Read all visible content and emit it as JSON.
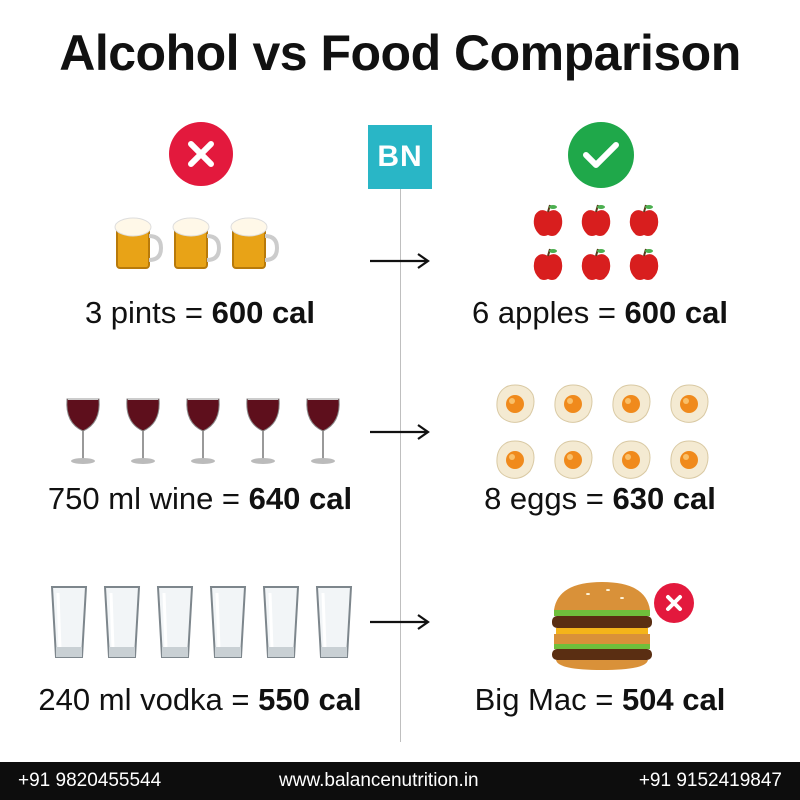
{
  "title": "Alcohol vs Food Comparison",
  "logo": {
    "text": "BN",
    "color": "#29b6c6"
  },
  "colors": {
    "bad": "#e3193d",
    "good": "#1fa84a"
  },
  "rows": [
    {
      "left": {
        "prefix": "3 pints = ",
        "value": "600 cal",
        "icon": "beer-mug-icon",
        "count": 3
      },
      "right": {
        "prefix": "6 apples = ",
        "value": "600 cal",
        "icon": "apple-icon",
        "count": 6
      }
    },
    {
      "left": {
        "prefix": "750 ml wine = ",
        "value": "640 cal",
        "icon": "wine-glass-icon",
        "count": 5
      },
      "right": {
        "prefix": "8 eggs = ",
        "value": "630 cal",
        "icon": "fried-egg-icon",
        "count": 8
      }
    },
    {
      "left": {
        "prefix": "240 ml vodka = ",
        "value": "550 cal",
        "icon": "shot-glass-icon",
        "count": 6
      },
      "right": {
        "prefix": "Big Mac = ",
        "value": "504 cal",
        "icon": "burger-icon",
        "count": 1
      }
    }
  ],
  "footer": {
    "phone_left": "+91 9820455544",
    "website": "www.balancenutrition.in",
    "phone_right": "+91 9152419847"
  }
}
